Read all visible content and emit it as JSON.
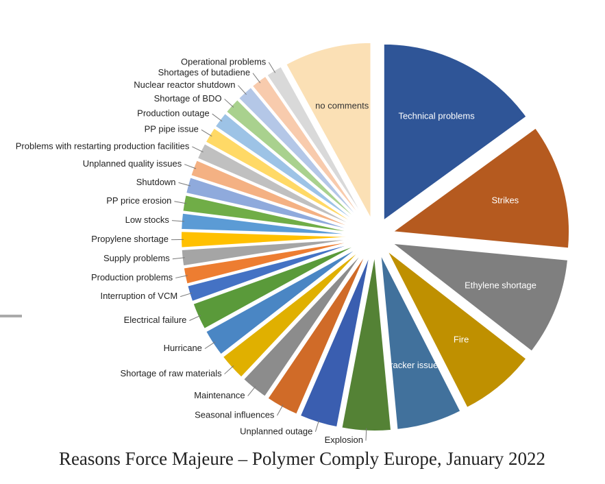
{
  "chart_data": {
    "type": "pie",
    "title": "Reasons Force Majeure – Polymer Comply Europe, January 2022",
    "categories": [
      "Technical problems",
      "Strikes",
      "Ethylene shortage",
      "Fire",
      "Cracker issues",
      "Explosion",
      "Unplanned outage",
      "Seasonal influences",
      "Maintenance",
      "Shortage of raw materials",
      "Hurricane",
      "Electrical failure",
      "Interruption of VCM",
      "Production problems",
      "Supply problems",
      "Propylene shortage",
      "Low stocks",
      "PP price erosion",
      "Shutdown",
      "Unplanned quality issues",
      "Problems with restarting production facilities",
      "PP pipe issue",
      "Production outage",
      "Shortage of BDO",
      "Nuclear reactor shutdown",
      "Shortages of butadiene",
      "Operational problems",
      "no comments"
    ],
    "values": [
      15,
      11.5,
      9,
      7,
      6,
      4.5,
      3.5,
      3,
      2.5,
      2.5,
      2.5,
      2.5,
      1.5,
      1.5,
      1.5,
      1.5,
      1.5,
      1.5,
      1.5,
      1.5,
      1.5,
      1.5,
      1.5,
      1.5,
      1.5,
      1.5,
      1.5,
      8
    ],
    "colors": [
      "#2f5597",
      "#b55a1f",
      "#7f7f7f",
      "#bf9000",
      "#41719c",
      "#548235",
      "#3a5eb0",
      "#d06b28",
      "#8c8c8c",
      "#e0b000",
      "#4a86c4",
      "#5a9a3a",
      "#4472c4",
      "#ed7d31",
      "#a5a5a5",
      "#ffc000",
      "#5b9bd5",
      "#70ad47",
      "#8faadc",
      "#f4b183",
      "#c0c0c0",
      "#ffd966",
      "#9dc3e6",
      "#a9d18e",
      "#b4c7e7",
      "#f8cbad",
      "#d9d9d9",
      "#fbe0b5"
    ]
  }
}
